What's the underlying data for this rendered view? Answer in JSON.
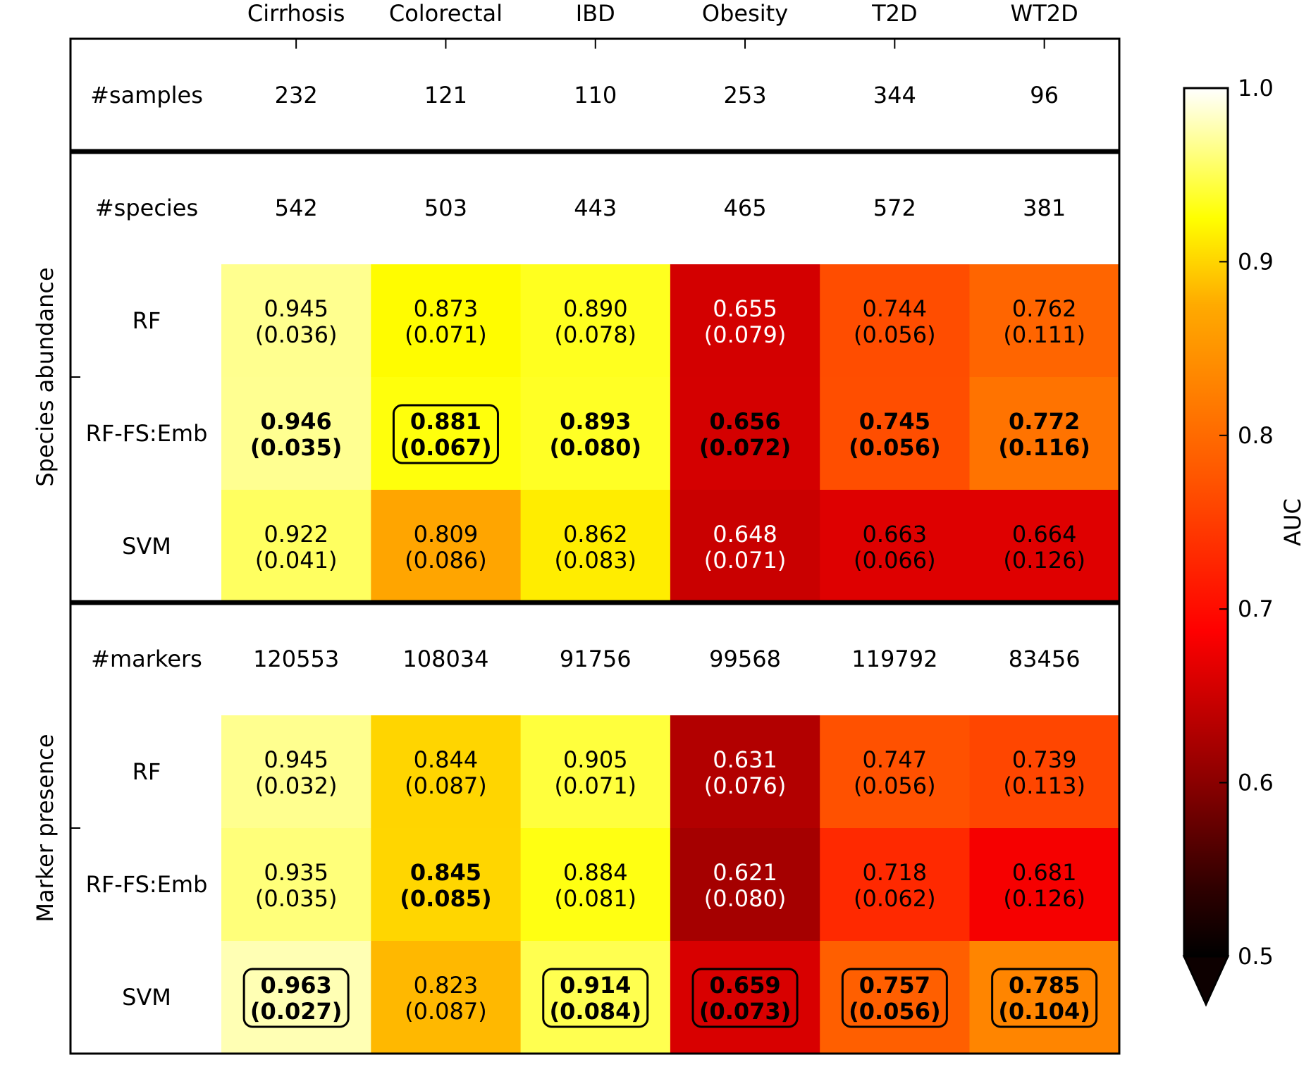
{
  "chart_data": {
    "type": "heatmap",
    "columns": [
      "Cirrhosis",
      "Colorectal",
      "IBD",
      "Obesity",
      "T2D",
      "WT2D"
    ],
    "header_rows": [
      {
        "label": "#samples",
        "values": [
          "232",
          "121",
          "110",
          "253",
          "344",
          "96"
        ]
      }
    ],
    "groups": [
      {
        "label": "Species abundance",
        "info_row": {
          "label": "#species",
          "values": [
            "542",
            "503",
            "443",
            "465",
            "572",
            "381"
          ]
        },
        "methods": [
          {
            "label": "RF",
            "auc": [
              0.945,
              0.873,
              0.89,
              0.655,
              0.744,
              0.762
            ],
            "auc_text": [
              "0.945",
              "0.873",
              "0.890",
              "0.655",
              "0.744",
              "0.762"
            ],
            "sd_text": [
              "(0.036)",
              "(0.071)",
              "(0.078)",
              "(0.079)",
              "(0.056)",
              "(0.111)"
            ],
            "bold": [
              false,
              false,
              false,
              false,
              false,
              false
            ],
            "boxed": [
              false,
              false,
              false,
              false,
              false,
              false
            ]
          },
          {
            "label": "RF-FS:Emb",
            "auc": [
              0.946,
              0.881,
              0.893,
              0.656,
              0.745,
              0.772
            ],
            "auc_text": [
              "0.946",
              "0.881",
              "0.893",
              "0.656",
              "0.745",
              "0.772"
            ],
            "sd_text": [
              "(0.035)",
              "(0.067)",
              "(0.080)",
              "(0.072)",
              "(0.056)",
              "(0.116)"
            ],
            "bold": [
              true,
              true,
              true,
              true,
              true,
              true
            ],
            "boxed": [
              false,
              true,
              false,
              false,
              false,
              false
            ]
          },
          {
            "label": "SVM",
            "auc": [
              0.922,
              0.809,
              0.862,
              0.648,
              0.663,
              0.664
            ],
            "auc_text": [
              "0.922",
              "0.809",
              "0.862",
              "0.648",
              "0.663",
              "0.664"
            ],
            "sd_text": [
              "(0.041)",
              "(0.086)",
              "(0.083)",
              "(0.071)",
              "(0.066)",
              "(0.126)"
            ],
            "bold": [
              false,
              false,
              false,
              false,
              false,
              false
            ],
            "boxed": [
              false,
              false,
              false,
              false,
              false,
              false
            ]
          }
        ]
      },
      {
        "label": "Marker presence",
        "info_row": {
          "label": "#markers",
          "values": [
            "120553",
            "108034",
            "91756",
            "99568",
            "119792",
            "83456"
          ]
        },
        "methods": [
          {
            "label": "RF",
            "auc": [
              0.945,
              0.844,
              0.905,
              0.631,
              0.747,
              0.739
            ],
            "auc_text": [
              "0.945",
              "0.844",
              "0.905",
              "0.631",
              "0.747",
              "0.739"
            ],
            "sd_text": [
              "(0.032)",
              "(0.087)",
              "(0.071)",
              "(0.076)",
              "(0.056)",
              "(0.113)"
            ],
            "bold": [
              false,
              false,
              false,
              false,
              false,
              false
            ],
            "boxed": [
              false,
              false,
              false,
              false,
              false,
              false
            ]
          },
          {
            "label": "RF-FS:Emb",
            "auc": [
              0.935,
              0.845,
              0.884,
              0.621,
              0.718,
              0.681
            ],
            "auc_text": [
              "0.935",
              "0.845",
              "0.884",
              "0.621",
              "0.718",
              "0.681"
            ],
            "sd_text": [
              "(0.035)",
              "(0.085)",
              "(0.081)",
              "(0.080)",
              "(0.062)",
              "(0.126)"
            ],
            "bold": [
              false,
              true,
              false,
              false,
              false,
              false
            ],
            "boxed": [
              false,
              false,
              false,
              false,
              false,
              false
            ]
          },
          {
            "label": "SVM",
            "auc": [
              0.963,
              0.823,
              0.914,
              0.659,
              0.757,
              0.785
            ],
            "auc_text": [
              "0.963",
              "0.823",
              "0.914",
              "0.659",
              "0.757",
              "0.785"
            ],
            "sd_text": [
              "(0.027)",
              "(0.087)",
              "(0.084)",
              "(0.073)",
              "(0.056)",
              "(0.104)"
            ],
            "bold": [
              true,
              false,
              true,
              true,
              true,
              true
            ],
            "boxed": [
              true,
              false,
              true,
              true,
              true,
              true
            ]
          }
        ]
      }
    ],
    "colorbar": {
      "label": "AUC",
      "colormap": "hot",
      "range": [
        0.5,
        1.0
      ],
      "extend": "min",
      "ticks": [
        0.5,
        0.6,
        0.7,
        0.8,
        0.9,
        1.0
      ],
      "tick_labels": [
        "0.5",
        "0.6",
        "0.7",
        "0.8",
        "0.9",
        "1.0"
      ]
    }
  }
}
